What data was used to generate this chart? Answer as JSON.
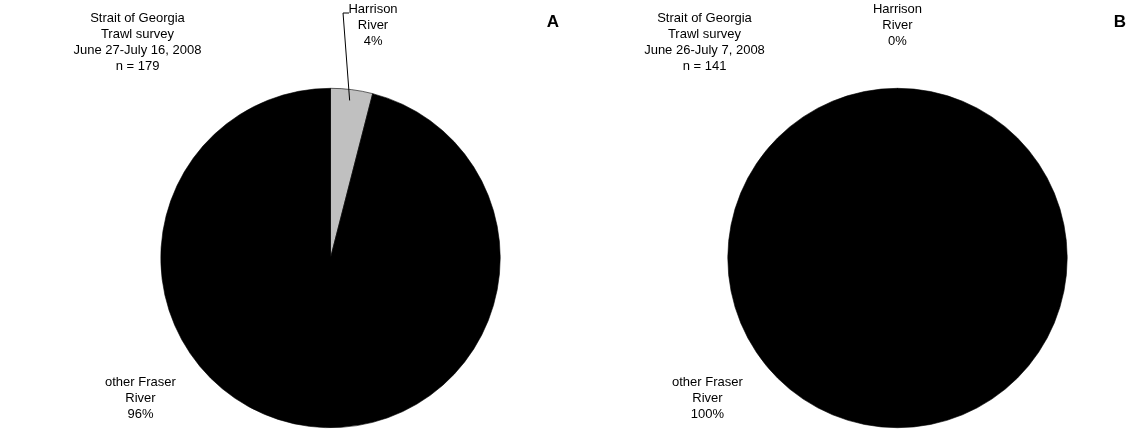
{
  "chart_data": [
    {
      "type": "pie",
      "title": "Strait of Georgia Trawl survey",
      "subtitle": "June 27-July 16, 2008",
      "annotations": [
        "n = 179",
        "A"
      ],
      "categories": [
        "Harrison River",
        "other Fraser River"
      ],
      "values": [
        4,
        96
      ],
      "colors": [
        "#c0c0c0",
        "#000000"
      ],
      "value_labels": [
        "4%",
        "96%"
      ],
      "legend": false
    },
    {
      "type": "pie",
      "title": "Strait of Georgia Trawl survey",
      "subtitle": "June 26-July 7, 2008",
      "annotations": [
        "n = 141",
        "B"
      ],
      "categories": [
        "Harrison River",
        "other Fraser River"
      ],
      "values": [
        0,
        100
      ],
      "colors": [
        "#c0c0c0",
        "#000000"
      ],
      "value_labels": [
        "0%",
        "100%"
      ],
      "legend": false
    }
  ]
}
